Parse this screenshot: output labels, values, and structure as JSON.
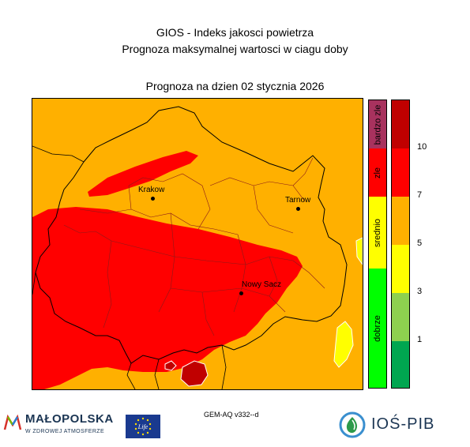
{
  "header": {
    "title_line1": "GIOS - Indeks jakosci powietrza",
    "title_line2": "Prognoza maksymalnej wartosci w ciagu doby",
    "forecast_date": "Prognoza na dzien  02 stycznia 2026"
  },
  "map": {
    "cities": [
      {
        "name": "Krakow"
      },
      {
        "name": "Tarnow"
      },
      {
        "name": "Nowy Sacz"
      }
    ]
  },
  "legend": {
    "categories": [
      {
        "label": "bardzo zle",
        "color": "#a8325e"
      },
      {
        "label": "zle",
        "color": "#ff0000"
      },
      {
        "label": "srednio",
        "color": "#ffff00"
      },
      {
        "label": "dobrze",
        "color": "#00ff00"
      }
    ],
    "scale_colors": [
      "#00a650",
      "#8ed04f",
      "#ffff00",
      "#ffb000",
      "#ff0000",
      "#c00000"
    ],
    "ticks": [
      "1",
      "3",
      "5",
      "7",
      "10"
    ]
  },
  "footer": {
    "model": "GEM-AQ v332--d",
    "logo_malopolska": "MAŁOPOLSKA",
    "logo_malopolska_tagline": "W ZDROWEJ ATMOSFERZE",
    "logo_life": "Life",
    "logo_ios": "IOŚ-PIB"
  },
  "colors": {
    "orange": "#ffb000",
    "red": "#ff0000",
    "dark_red": "#c00000",
    "yellow": "#ffff00"
  }
}
